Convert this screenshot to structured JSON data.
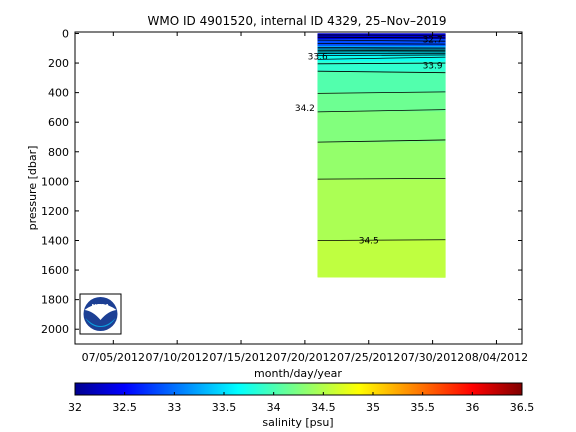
{
  "chart_data": {
    "type": "heatmap",
    "title": "WMO ID 4901520, internal ID 4329, 25–Nov–2019",
    "xlabel": "month/day/year",
    "ylabel": "pressure [dbar]",
    "x_ticks": [
      "07/05/2012",
      "07/10/2012",
      "07/15/2012",
      "07/20/2012",
      "07/25/2012",
      "07/30/2012",
      "08/04/2012"
    ],
    "y_ticks": [
      0,
      200,
      400,
      600,
      800,
      1000,
      1200,
      1400,
      1600,
      1800,
      2000
    ],
    "ylim": [
      2100,
      -10
    ],
    "grid": false,
    "data_x_range": [
      "07/21/2012",
      "07/31/2012"
    ],
    "data_bottom_pressure": [
      1648,
      1652
    ],
    "colorbar": {
      "label": "salinity [psu]",
      "range": [
        32,
        36.5
      ],
      "ticks": [
        "32",
        "32.5",
        "33",
        "33.5",
        "34",
        "34.5",
        "35",
        "35.5",
        "36",
        "36.5"
      ],
      "colormap": "jet"
    },
    "layers": [
      {
        "top": 0,
        "bottom": 40,
        "salinity": 32.4
      },
      {
        "top": 40,
        "bottom": 85,
        "salinity": 32.9
      },
      {
        "top": 85,
        "bottom": 110,
        "salinity": 33.3
      },
      {
        "top": 110,
        "bottom": 150,
        "salinity": 33.6
      },
      {
        "top": 150,
        "bottom": 190,
        "salinity": 33.75
      },
      {
        "top": 190,
        "bottom": 260,
        "salinity": 33.9
      },
      {
        "top": 260,
        "bottom": 400,
        "salinity": 34.05
      },
      {
        "top": 400,
        "bottom": 530,
        "salinity": 34.17
      },
      {
        "top": 530,
        "bottom": 740,
        "salinity": 34.26
      },
      {
        "top": 740,
        "bottom": 990,
        "salinity": 34.34
      },
      {
        "top": 990,
        "bottom": 1400,
        "salinity": 34.44
      },
      {
        "top": 1400,
        "bottom": 1650,
        "salinity": 34.53
      }
    ],
    "contours": [
      {
        "left": 10,
        "right": 12
      },
      {
        "left": 25,
        "right": 30
      },
      {
        "left": 45,
        "right": 52
      },
      {
        "left": 68,
        "right": 72
      },
      {
        "left": 95,
        "right": 98
      },
      {
        "left": 105,
        "right": 106
      },
      {
        "left": 115,
        "right": 116
      },
      {
        "left": 125,
        "right": 124
      },
      {
        "left": 135,
        "right": 134
      },
      {
        "left": 150,
        "right": 145
      },
      {
        "left": 175,
        "right": 160
      },
      {
        "left": 205,
        "right": 200
      },
      {
        "left": 255,
        "right": 265
      },
      {
        "left": 405,
        "right": 395
      },
      {
        "left": 530,
        "right": 515
      },
      {
        "left": 735,
        "right": 720
      },
      {
        "left": 985,
        "right": 980
      },
      {
        "left": 1400,
        "right": 1395
      }
    ],
    "contour_labels": [
      {
        "text": "32.7",
        "date": "07/30/2012",
        "pressure": 40
      },
      {
        "text": "33.6",
        "date": "07/21/2012",
        "pressure": 155
      },
      {
        "text": "33.9",
        "date": "07/30/2012",
        "pressure": 215
      },
      {
        "text": "34.2",
        "date": "07/20/2012",
        "pressure": 505
      },
      {
        "text": "34.5",
        "date": "07/25/2012",
        "pressure": 1400
      }
    ]
  },
  "logo": {
    "text": "NOAA",
    "name": "noaa-logo"
  }
}
